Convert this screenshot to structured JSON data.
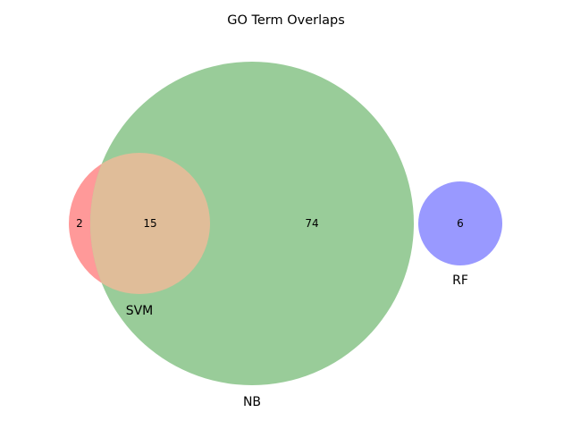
{
  "chart_data": {
    "type": "venn",
    "title": "GO Term Overlaps",
    "sets": [
      {
        "name": "SVM",
        "color": "#ff9999"
      },
      {
        "name": "NB",
        "color": "#99cc99"
      },
      {
        "name": "RF",
        "color": "#9999ff"
      }
    ],
    "regions": [
      {
        "sets": [
          "SVM"
        ],
        "count": "2"
      },
      {
        "sets": [
          "SVM",
          "NB"
        ],
        "count": "15"
      },
      {
        "sets": [
          "NB"
        ],
        "count": "74"
      },
      {
        "sets": [
          "RF"
        ],
        "count": "6"
      }
    ],
    "overlap_color": "#e0bd99"
  }
}
